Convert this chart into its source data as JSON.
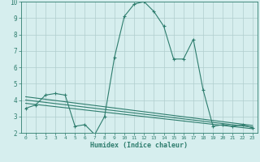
{
  "xlabel": "Humidex (Indice chaleur)",
  "background_color": "#d6eeee",
  "grid_color": "#b0cece",
  "line_color": "#2e7d6e",
  "xlim": [
    -0.5,
    23.5
  ],
  "ylim": [
    2,
    10
  ],
  "yticks": [
    2,
    3,
    4,
    5,
    6,
    7,
    8,
    9,
    10
  ],
  "xticks": [
    0,
    1,
    2,
    3,
    4,
    5,
    6,
    7,
    8,
    9,
    10,
    11,
    12,
    13,
    14,
    15,
    16,
    17,
    18,
    19,
    20,
    21,
    22,
    23
  ],
  "main_x": [
    0,
    1,
    2,
    3,
    4,
    5,
    6,
    7,
    8,
    9,
    10,
    11,
    12,
    13,
    14,
    15,
    16,
    17,
    18,
    19,
    20,
    21,
    22,
    23
  ],
  "main_y": [
    3.5,
    3.7,
    4.3,
    4.4,
    4.3,
    2.4,
    2.5,
    1.9,
    3.0,
    6.6,
    9.1,
    9.85,
    10.0,
    9.4,
    8.5,
    6.5,
    6.5,
    7.7,
    4.6,
    2.4,
    2.5,
    2.4,
    2.5,
    2.3
  ],
  "line1_x": [
    0,
    23
  ],
  "line1_y": [
    4.2,
    2.45
  ],
  "line2_x": [
    0,
    23
  ],
  "line2_y": [
    4.0,
    2.35
  ],
  "line3_x": [
    0,
    23
  ],
  "line3_y": [
    3.8,
    2.25
  ]
}
